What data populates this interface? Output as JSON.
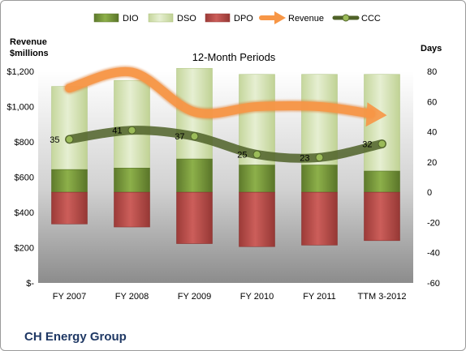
{
  "chart_data": {
    "type": "bar",
    "title": "12-Month Periods",
    "company": "CH Energy Group",
    "y_left_label": [
      "Revenue",
      "$millions"
    ],
    "y_right_label": "Days",
    "categories": [
      "FY 2007",
      "FY 2008",
      "FY 2009",
      "FY 2010",
      "FY 2011",
      "TTM 3-2012"
    ],
    "y_left_ticks": [
      "$-",
      "$200",
      "$400",
      "$600",
      "$800",
      "$1,000",
      "$1,200"
    ],
    "y_right_ticks": [
      "-60",
      "-40",
      "-20",
      "0",
      "20",
      "40",
      "60",
      "80"
    ],
    "ylim_left": [
      0,
      1200
    ],
    "ylim_right": [
      -60,
      80
    ],
    "legend_position": "top",
    "legend": [
      {
        "key": "dio",
        "label": "DIO",
        "color": "#77933c"
      },
      {
        "key": "dso",
        "label": "DSO",
        "color": "#d7e4bd"
      },
      {
        "key": "dpo",
        "label": "DPO",
        "color": "#c0504d"
      },
      {
        "key": "revenue",
        "label": "Revenue",
        "color": "#f79646"
      },
      {
        "key": "ccc",
        "label": "CCC",
        "color": "#4f6228"
      }
    ],
    "series": [
      {
        "key": "dio",
        "name": "DIO",
        "axis": "right",
        "values": [
          0,
          0,
          0,
          0,
          0,
          0
        ],
        "top_values": [
          15,
          16,
          22,
          18,
          18,
          14
        ]
      },
      {
        "key": "dso",
        "name": "DSO",
        "axis": "right",
        "values": [
          55,
          58,
          60,
          60,
          60,
          64
        ],
        "base_values": [
          15,
          16,
          22,
          18,
          18,
          14
        ]
      },
      {
        "key": "dpo",
        "name": "DPO",
        "axis": "right",
        "values": [
          -21,
          -23,
          -34,
          -36,
          -35,
          -32
        ]
      },
      {
        "key": "revenue",
        "name": "Revenue",
        "axis": "left",
        "values": [
          1105,
          1195,
          970,
          1000,
          1000,
          955
        ]
      },
      {
        "key": "ccc",
        "name": "CCC",
        "axis": "right",
        "values": [
          35,
          41,
          37,
          25,
          23,
          32
        ],
        "labels": [
          "35",
          "41",
          "37",
          "25",
          "23",
          "32"
        ]
      }
    ],
    "colors": {
      "dio": "#77933c",
      "dso": "#d7e4bd",
      "dpo": "#c0504d",
      "revenue": "#f79646",
      "ccc": "#4f6228",
      "company_title": "#1f3864"
    }
  }
}
